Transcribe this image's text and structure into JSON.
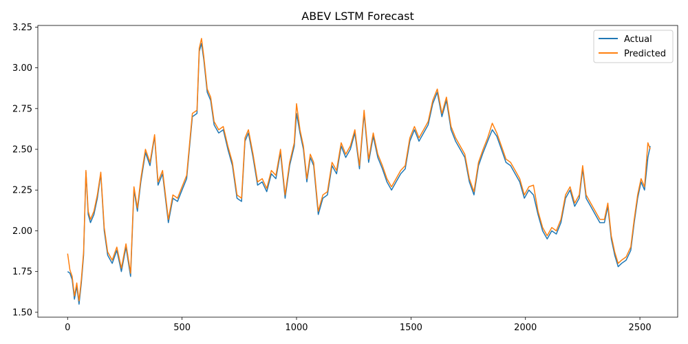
{
  "chart_data": {
    "type": "line",
    "title": "ABEV LSTM Forecast",
    "xlabel": "",
    "ylabel": "",
    "xlim": [
      -130,
      2665
    ],
    "ylim": [
      1.47,
      3.26
    ],
    "xticks": [
      0,
      500,
      1000,
      1500,
      2000,
      2500
    ],
    "xtick_labels": [
      "0",
      "500",
      "1000",
      "1500",
      "2000",
      "2500"
    ],
    "yticks": [
      1.5,
      1.75,
      2.0,
      2.25,
      2.5,
      2.75,
      3.0,
      3.25
    ],
    "ytick_labels": [
      "1.50",
      "1.75",
      "2.00",
      "2.25",
      "2.50",
      "2.75",
      "3.00",
      "3.25"
    ],
    "grid": false,
    "legend_position": "upper-right",
    "series": [
      {
        "name": "Actual",
        "color": "#1f77b4",
        "points": [
          [
            0,
            1.75
          ],
          [
            10,
            1.74
          ],
          [
            20,
            1.7
          ],
          [
            30,
            1.58
          ],
          [
            40,
            1.66
          ],
          [
            50,
            1.55
          ],
          [
            60,
            1.68
          ],
          [
            70,
            1.85
          ],
          [
            80,
            2.36
          ],
          [
            90,
            2.1
          ],
          [
            100,
            2.05
          ],
          [
            115,
            2.1
          ],
          [
            130,
            2.2
          ],
          [
            145,
            2.35
          ],
          [
            160,
            2.0
          ],
          [
            175,
            1.85
          ],
          [
            195,
            1.8
          ],
          [
            215,
            1.88
          ],
          [
            235,
            1.75
          ],
          [
            255,
            1.9
          ],
          [
            275,
            1.72
          ],
          [
            290,
            2.25
          ],
          [
            305,
            2.12
          ],
          [
            320,
            2.3
          ],
          [
            340,
            2.48
          ],
          [
            360,
            2.4
          ],
          [
            380,
            2.58
          ],
          [
            395,
            2.28
          ],
          [
            415,
            2.35
          ],
          [
            440,
            2.05
          ],
          [
            460,
            2.2
          ],
          [
            480,
            2.18
          ],
          [
            500,
            2.25
          ],
          [
            520,
            2.32
          ],
          [
            535,
            2.55
          ],
          [
            545,
            2.7
          ],
          [
            565,
            2.72
          ],
          [
            575,
            3.1
          ],
          [
            585,
            3.15
          ],
          [
            595,
            3.05
          ],
          [
            610,
            2.85
          ],
          [
            625,
            2.8
          ],
          [
            640,
            2.65
          ],
          [
            660,
            2.6
          ],
          [
            680,
            2.62
          ],
          [
            700,
            2.5
          ],
          [
            720,
            2.4
          ],
          [
            740,
            2.2
          ],
          [
            760,
            2.18
          ],
          [
            775,
            2.55
          ],
          [
            790,
            2.6
          ],
          [
            810,
            2.45
          ],
          [
            830,
            2.28
          ],
          [
            850,
            2.3
          ],
          [
            870,
            2.24
          ],
          [
            890,
            2.35
          ],
          [
            910,
            2.32
          ],
          [
            930,
            2.48
          ],
          [
            950,
            2.2
          ],
          [
            970,
            2.4
          ],
          [
            990,
            2.52
          ],
          [
            1000,
            2.72
          ],
          [
            1015,
            2.6
          ],
          [
            1030,
            2.5
          ],
          [
            1045,
            2.3
          ],
          [
            1060,
            2.45
          ],
          [
            1075,
            2.4
          ],
          [
            1095,
            2.1
          ],
          [
            1115,
            2.2
          ],
          [
            1135,
            2.22
          ],
          [
            1155,
            2.4
          ],
          [
            1175,
            2.35
          ],
          [
            1195,
            2.52
          ],
          [
            1215,
            2.45
          ],
          [
            1235,
            2.5
          ],
          [
            1255,
            2.6
          ],
          [
            1275,
            2.38
          ],
          [
            1295,
            2.72
          ],
          [
            1315,
            2.42
          ],
          [
            1335,
            2.58
          ],
          [
            1355,
            2.45
          ],
          [
            1375,
            2.38
          ],
          [
            1395,
            2.3
          ],
          [
            1415,
            2.25
          ],
          [
            1435,
            2.3
          ],
          [
            1455,
            2.35
          ],
          [
            1475,
            2.38
          ],
          [
            1495,
            2.55
          ],
          [
            1515,
            2.62
          ],
          [
            1535,
            2.55
          ],
          [
            1555,
            2.6
          ],
          [
            1575,
            2.65
          ],
          [
            1595,
            2.78
          ],
          [
            1615,
            2.85
          ],
          [
            1635,
            2.7
          ],
          [
            1655,
            2.8
          ],
          [
            1675,
            2.62
          ],
          [
            1695,
            2.55
          ],
          [
            1715,
            2.5
          ],
          [
            1735,
            2.45
          ],
          [
            1755,
            2.3
          ],
          [
            1775,
            2.22
          ],
          [
            1795,
            2.4
          ],
          [
            1815,
            2.48
          ],
          [
            1835,
            2.55
          ],
          [
            1855,
            2.62
          ],
          [
            1875,
            2.58
          ],
          [
            1895,
            2.5
          ],
          [
            1915,
            2.42
          ],
          [
            1935,
            2.4
          ],
          [
            1955,
            2.35
          ],
          [
            1975,
            2.3
          ],
          [
            1995,
            2.2
          ],
          [
            2015,
            2.25
          ],
          [
            2035,
            2.22
          ],
          [
            2055,
            2.1
          ],
          [
            2075,
            2.0
          ],
          [
            2095,
            1.95
          ],
          [
            2115,
            2.0
          ],
          [
            2135,
            1.98
          ],
          [
            2155,
            2.05
          ],
          [
            2175,
            2.2
          ],
          [
            2195,
            2.25
          ],
          [
            2215,
            2.15
          ],
          [
            2235,
            2.2
          ],
          [
            2250,
            2.38
          ],
          [
            2265,
            2.2
          ],
          [
            2285,
            2.15
          ],
          [
            2305,
            2.1
          ],
          [
            2325,
            2.05
          ],
          [
            2345,
            2.05
          ],
          [
            2360,
            2.15
          ],
          [
            2375,
            1.95
          ],
          [
            2390,
            1.85
          ],
          [
            2405,
            1.78
          ],
          [
            2420,
            1.8
          ],
          [
            2440,
            1.82
          ],
          [
            2460,
            1.88
          ],
          [
            2475,
            2.05
          ],
          [
            2490,
            2.2
          ],
          [
            2505,
            2.3
          ],
          [
            2520,
            2.25
          ],
          [
            2535,
            2.45
          ],
          [
            2545,
            2.52
          ]
        ]
      },
      {
        "name": "Predicted",
        "color": "#ff7f0e",
        "points": [
          [
            0,
            1.86
          ],
          [
            10,
            1.76
          ],
          [
            20,
            1.72
          ],
          [
            30,
            1.6
          ],
          [
            40,
            1.68
          ],
          [
            50,
            1.57
          ],
          [
            60,
            1.7
          ],
          [
            70,
            1.87
          ],
          [
            80,
            2.37
          ],
          [
            90,
            2.12
          ],
          [
            100,
            2.07
          ],
          [
            115,
            2.12
          ],
          [
            130,
            2.22
          ],
          [
            145,
            2.36
          ],
          [
            160,
            2.02
          ],
          [
            175,
            1.87
          ],
          [
            195,
            1.82
          ],
          [
            215,
            1.9
          ],
          [
            235,
            1.77
          ],
          [
            255,
            1.92
          ],
          [
            275,
            1.74
          ],
          [
            290,
            2.27
          ],
          [
            305,
            2.14
          ],
          [
            320,
            2.32
          ],
          [
            340,
            2.5
          ],
          [
            360,
            2.42
          ],
          [
            380,
            2.59
          ],
          [
            395,
            2.3
          ],
          [
            415,
            2.37
          ],
          [
            440,
            2.07
          ],
          [
            460,
            2.22
          ],
          [
            480,
            2.2
          ],
          [
            500,
            2.27
          ],
          [
            520,
            2.34
          ],
          [
            535,
            2.57
          ],
          [
            545,
            2.72
          ],
          [
            565,
            2.74
          ],
          [
            575,
            3.12
          ],
          [
            585,
            3.18
          ],
          [
            595,
            3.07
          ],
          [
            610,
            2.87
          ],
          [
            625,
            2.82
          ],
          [
            640,
            2.67
          ],
          [
            660,
            2.62
          ],
          [
            680,
            2.64
          ],
          [
            700,
            2.52
          ],
          [
            720,
            2.42
          ],
          [
            740,
            2.22
          ],
          [
            760,
            2.2
          ],
          [
            775,
            2.57
          ],
          [
            790,
            2.62
          ],
          [
            810,
            2.47
          ],
          [
            830,
            2.3
          ],
          [
            850,
            2.32
          ],
          [
            870,
            2.26
          ],
          [
            890,
            2.37
          ],
          [
            910,
            2.34
          ],
          [
            930,
            2.5
          ],
          [
            950,
            2.22
          ],
          [
            970,
            2.42
          ],
          [
            990,
            2.54
          ],
          [
            1000,
            2.78
          ],
          [
            1015,
            2.62
          ],
          [
            1030,
            2.52
          ],
          [
            1045,
            2.32
          ],
          [
            1060,
            2.47
          ],
          [
            1075,
            2.42
          ],
          [
            1095,
            2.12
          ],
          [
            1115,
            2.22
          ],
          [
            1135,
            2.24
          ],
          [
            1155,
            2.42
          ],
          [
            1175,
            2.37
          ],
          [
            1195,
            2.54
          ],
          [
            1215,
            2.47
          ],
          [
            1235,
            2.52
          ],
          [
            1255,
            2.62
          ],
          [
            1275,
            2.4
          ],
          [
            1295,
            2.74
          ],
          [
            1315,
            2.44
          ],
          [
            1335,
            2.6
          ],
          [
            1355,
            2.47
          ],
          [
            1375,
            2.4
          ],
          [
            1395,
            2.32
          ],
          [
            1415,
            2.27
          ],
          [
            1435,
            2.32
          ],
          [
            1455,
            2.37
          ],
          [
            1475,
            2.4
          ],
          [
            1495,
            2.57
          ],
          [
            1515,
            2.64
          ],
          [
            1535,
            2.57
          ],
          [
            1555,
            2.62
          ],
          [
            1575,
            2.67
          ],
          [
            1595,
            2.8
          ],
          [
            1615,
            2.87
          ],
          [
            1635,
            2.72
          ],
          [
            1655,
            2.82
          ],
          [
            1675,
            2.64
          ],
          [
            1695,
            2.57
          ],
          [
            1715,
            2.52
          ],
          [
            1735,
            2.47
          ],
          [
            1755,
            2.32
          ],
          [
            1775,
            2.24
          ],
          [
            1795,
            2.42
          ],
          [
            1815,
            2.5
          ],
          [
            1835,
            2.57
          ],
          [
            1855,
            2.66
          ],
          [
            1875,
            2.6
          ],
          [
            1895,
            2.52
          ],
          [
            1915,
            2.44
          ],
          [
            1935,
            2.42
          ],
          [
            1955,
            2.37
          ],
          [
            1975,
            2.32
          ],
          [
            1995,
            2.22
          ],
          [
            2015,
            2.27
          ],
          [
            2035,
            2.28
          ],
          [
            2055,
            2.12
          ],
          [
            2075,
            2.02
          ],
          [
            2095,
            1.97
          ],
          [
            2115,
            2.02
          ],
          [
            2135,
            2.0
          ],
          [
            2155,
            2.07
          ],
          [
            2175,
            2.22
          ],
          [
            2195,
            2.27
          ],
          [
            2215,
            2.17
          ],
          [
            2235,
            2.22
          ],
          [
            2250,
            2.4
          ],
          [
            2265,
            2.22
          ],
          [
            2285,
            2.17
          ],
          [
            2305,
            2.12
          ],
          [
            2325,
            2.07
          ],
          [
            2345,
            2.07
          ],
          [
            2360,
            2.17
          ],
          [
            2375,
            1.97
          ],
          [
            2390,
            1.87
          ],
          [
            2405,
            1.8
          ],
          [
            2420,
            1.82
          ],
          [
            2440,
            1.84
          ],
          [
            2460,
            1.9
          ],
          [
            2475,
            2.07
          ],
          [
            2490,
            2.22
          ],
          [
            2505,
            2.32
          ],
          [
            2520,
            2.27
          ],
          [
            2535,
            2.54
          ],
          [
            2545,
            2.5
          ]
        ]
      }
    ]
  }
}
